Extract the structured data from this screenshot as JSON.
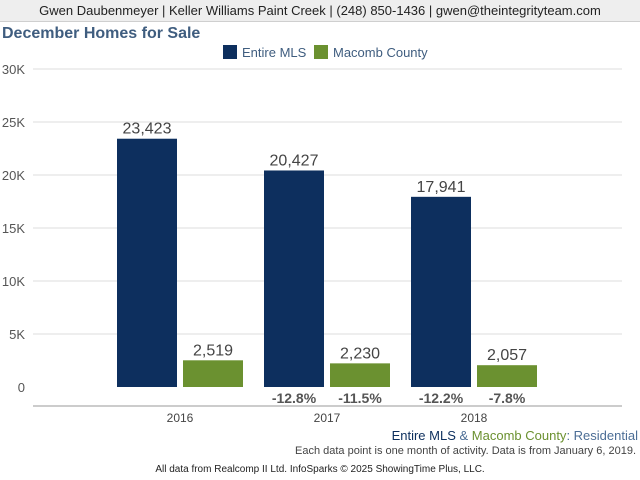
{
  "header": {
    "contact_line": "Gwen Daubenmeyer | Keller Williams Paint Creek | (248) 850-1436 | gwen@theintegrityteam.com"
  },
  "colors": {
    "entire_mls": "#0d2f5e",
    "macomb_county": "#6b9130",
    "title": "#3f5d7f",
    "residential": "#4c6e96"
  },
  "chart_data": {
    "type": "bar",
    "title": "December Homes for Sale",
    "categories": [
      "2016",
      "2017",
      "2018"
    ],
    "series": [
      {
        "name": "Entire MLS",
        "values": [
          23423,
          20427,
          17941
        ],
        "value_labels": [
          "23,423",
          "20,427",
          "17,941"
        ],
        "change_labels": [
          "",
          "-12.8%",
          "-12.2%"
        ]
      },
      {
        "name": "Macomb County",
        "values": [
          2519,
          2230,
          2057
        ],
        "value_labels": [
          "2,519",
          "2,230",
          "2,057"
        ],
        "change_labels": [
          "",
          "-11.5%",
          "-7.8%"
        ]
      }
    ],
    "ylim": [
      0,
      30000
    ],
    "yticks": [
      0,
      5000,
      10000,
      15000,
      20000,
      25000,
      30000
    ],
    "ytick_labels": [
      "0",
      "5K",
      "10K",
      "15K",
      "20K",
      "25K",
      "30K"
    ],
    "grid": true,
    "legend_position": "top-center"
  },
  "footer": {
    "series_a": "Entire MLS",
    "ampersand": " & ",
    "series_b": "Macomb County",
    "colon": ": ",
    "segment": "Residential",
    "note": "Each data point is one month of activity. Data is from January 6, 2019.",
    "source": "All data from Realcomp II Ltd. InfoSparks © 2025 ShowingTime Plus, LLC."
  }
}
